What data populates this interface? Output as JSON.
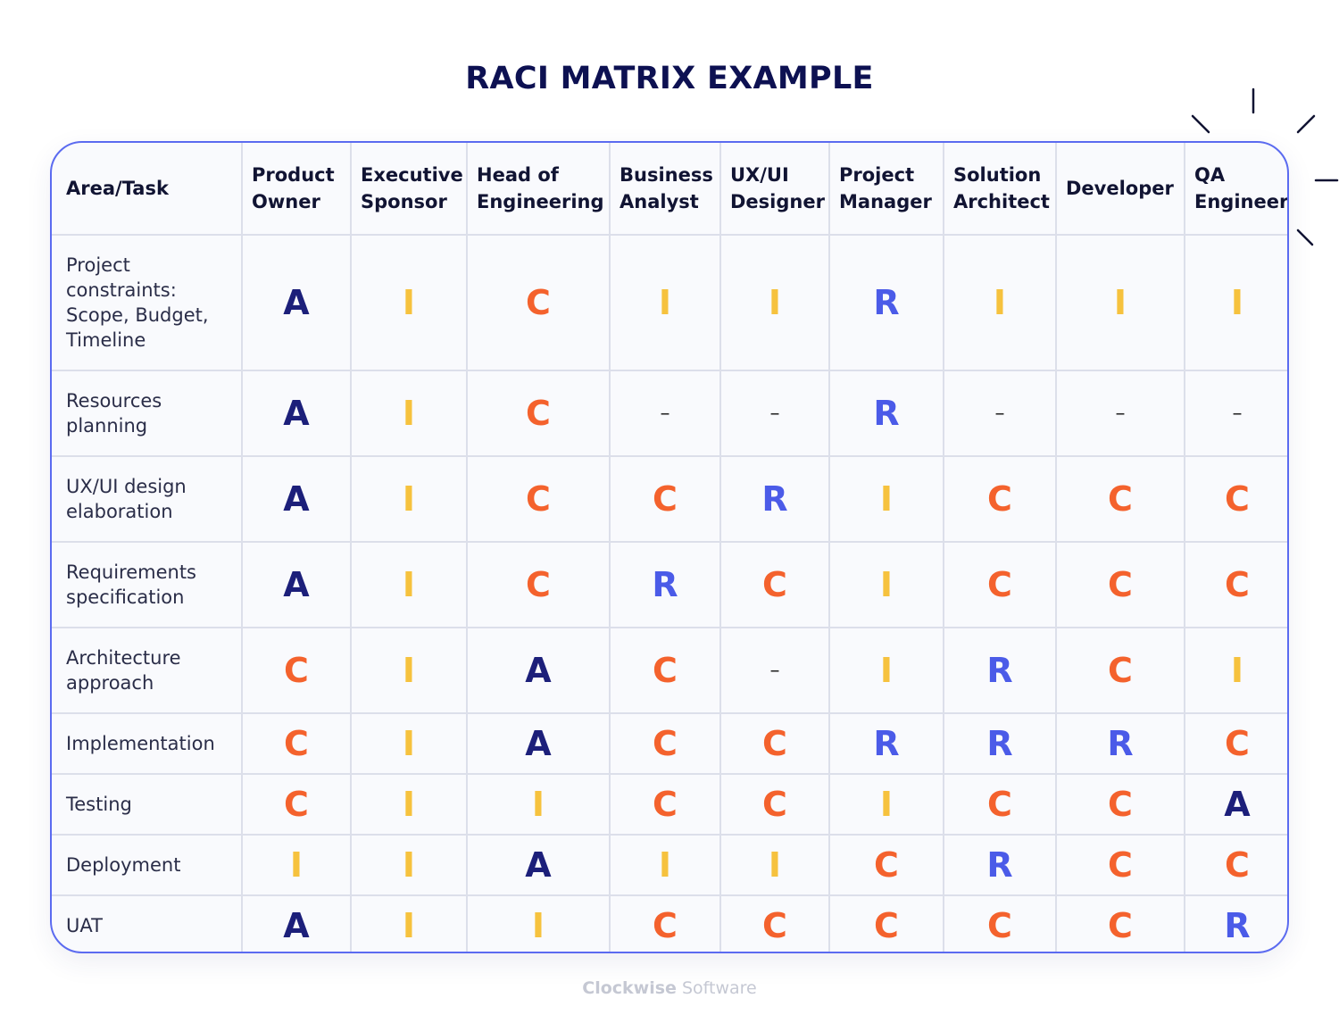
{
  "header": {
    "title": "RACI MATRIX EXAMPLE"
  },
  "table": {
    "columns": [
      "Area/Task",
      "Product Owner",
      "Executive Sponsor",
      "Head of Engineering",
      "Business Analyst",
      "UX/UI Designer",
      "Project Manager",
      "Solution Architect",
      "Developer",
      "QA Engineer"
    ],
    "rows": [
      [
        "Project constraints: Scope, Budget, Timeline",
        "A",
        "I",
        "C",
        "I",
        "I",
        "R",
        "I",
        "I",
        "I"
      ],
      [
        "Resources planning",
        "A",
        "I",
        "C",
        "–",
        "–",
        "R",
        "–",
        "–",
        "–"
      ],
      [
        "UX/UI design elaboration",
        "A",
        "I",
        "C",
        "C",
        "R",
        "I",
        "C",
        "C",
        "C"
      ],
      [
        "Requirements specification",
        "A",
        "I",
        "C",
        "R",
        "C",
        "I",
        "C",
        "C",
        "C"
      ],
      [
        "Architecture approach",
        "C",
        "I",
        "A",
        "C",
        "–",
        "I",
        "R",
        "C",
        "I"
      ],
      [
        "Implementation",
        "C",
        "I",
        "A",
        "C",
        "C",
        "R",
        "R",
        "R",
        "C"
      ],
      [
        "Testing",
        "C",
        "I",
        "I",
        "C",
        "C",
        "I",
        "C",
        "C",
        "A"
      ],
      [
        "Deployment",
        "I",
        "I",
        "A",
        "I",
        "I",
        "C",
        "R",
        "C",
        "C"
      ],
      [
        "UAT",
        "A",
        "I",
        "I",
        "C",
        "C",
        "C",
        "C",
        "C",
        "R"
      ]
    ]
  },
  "footer": {
    "brand": "Clockwise",
    "brand_suffix": "Software"
  }
}
